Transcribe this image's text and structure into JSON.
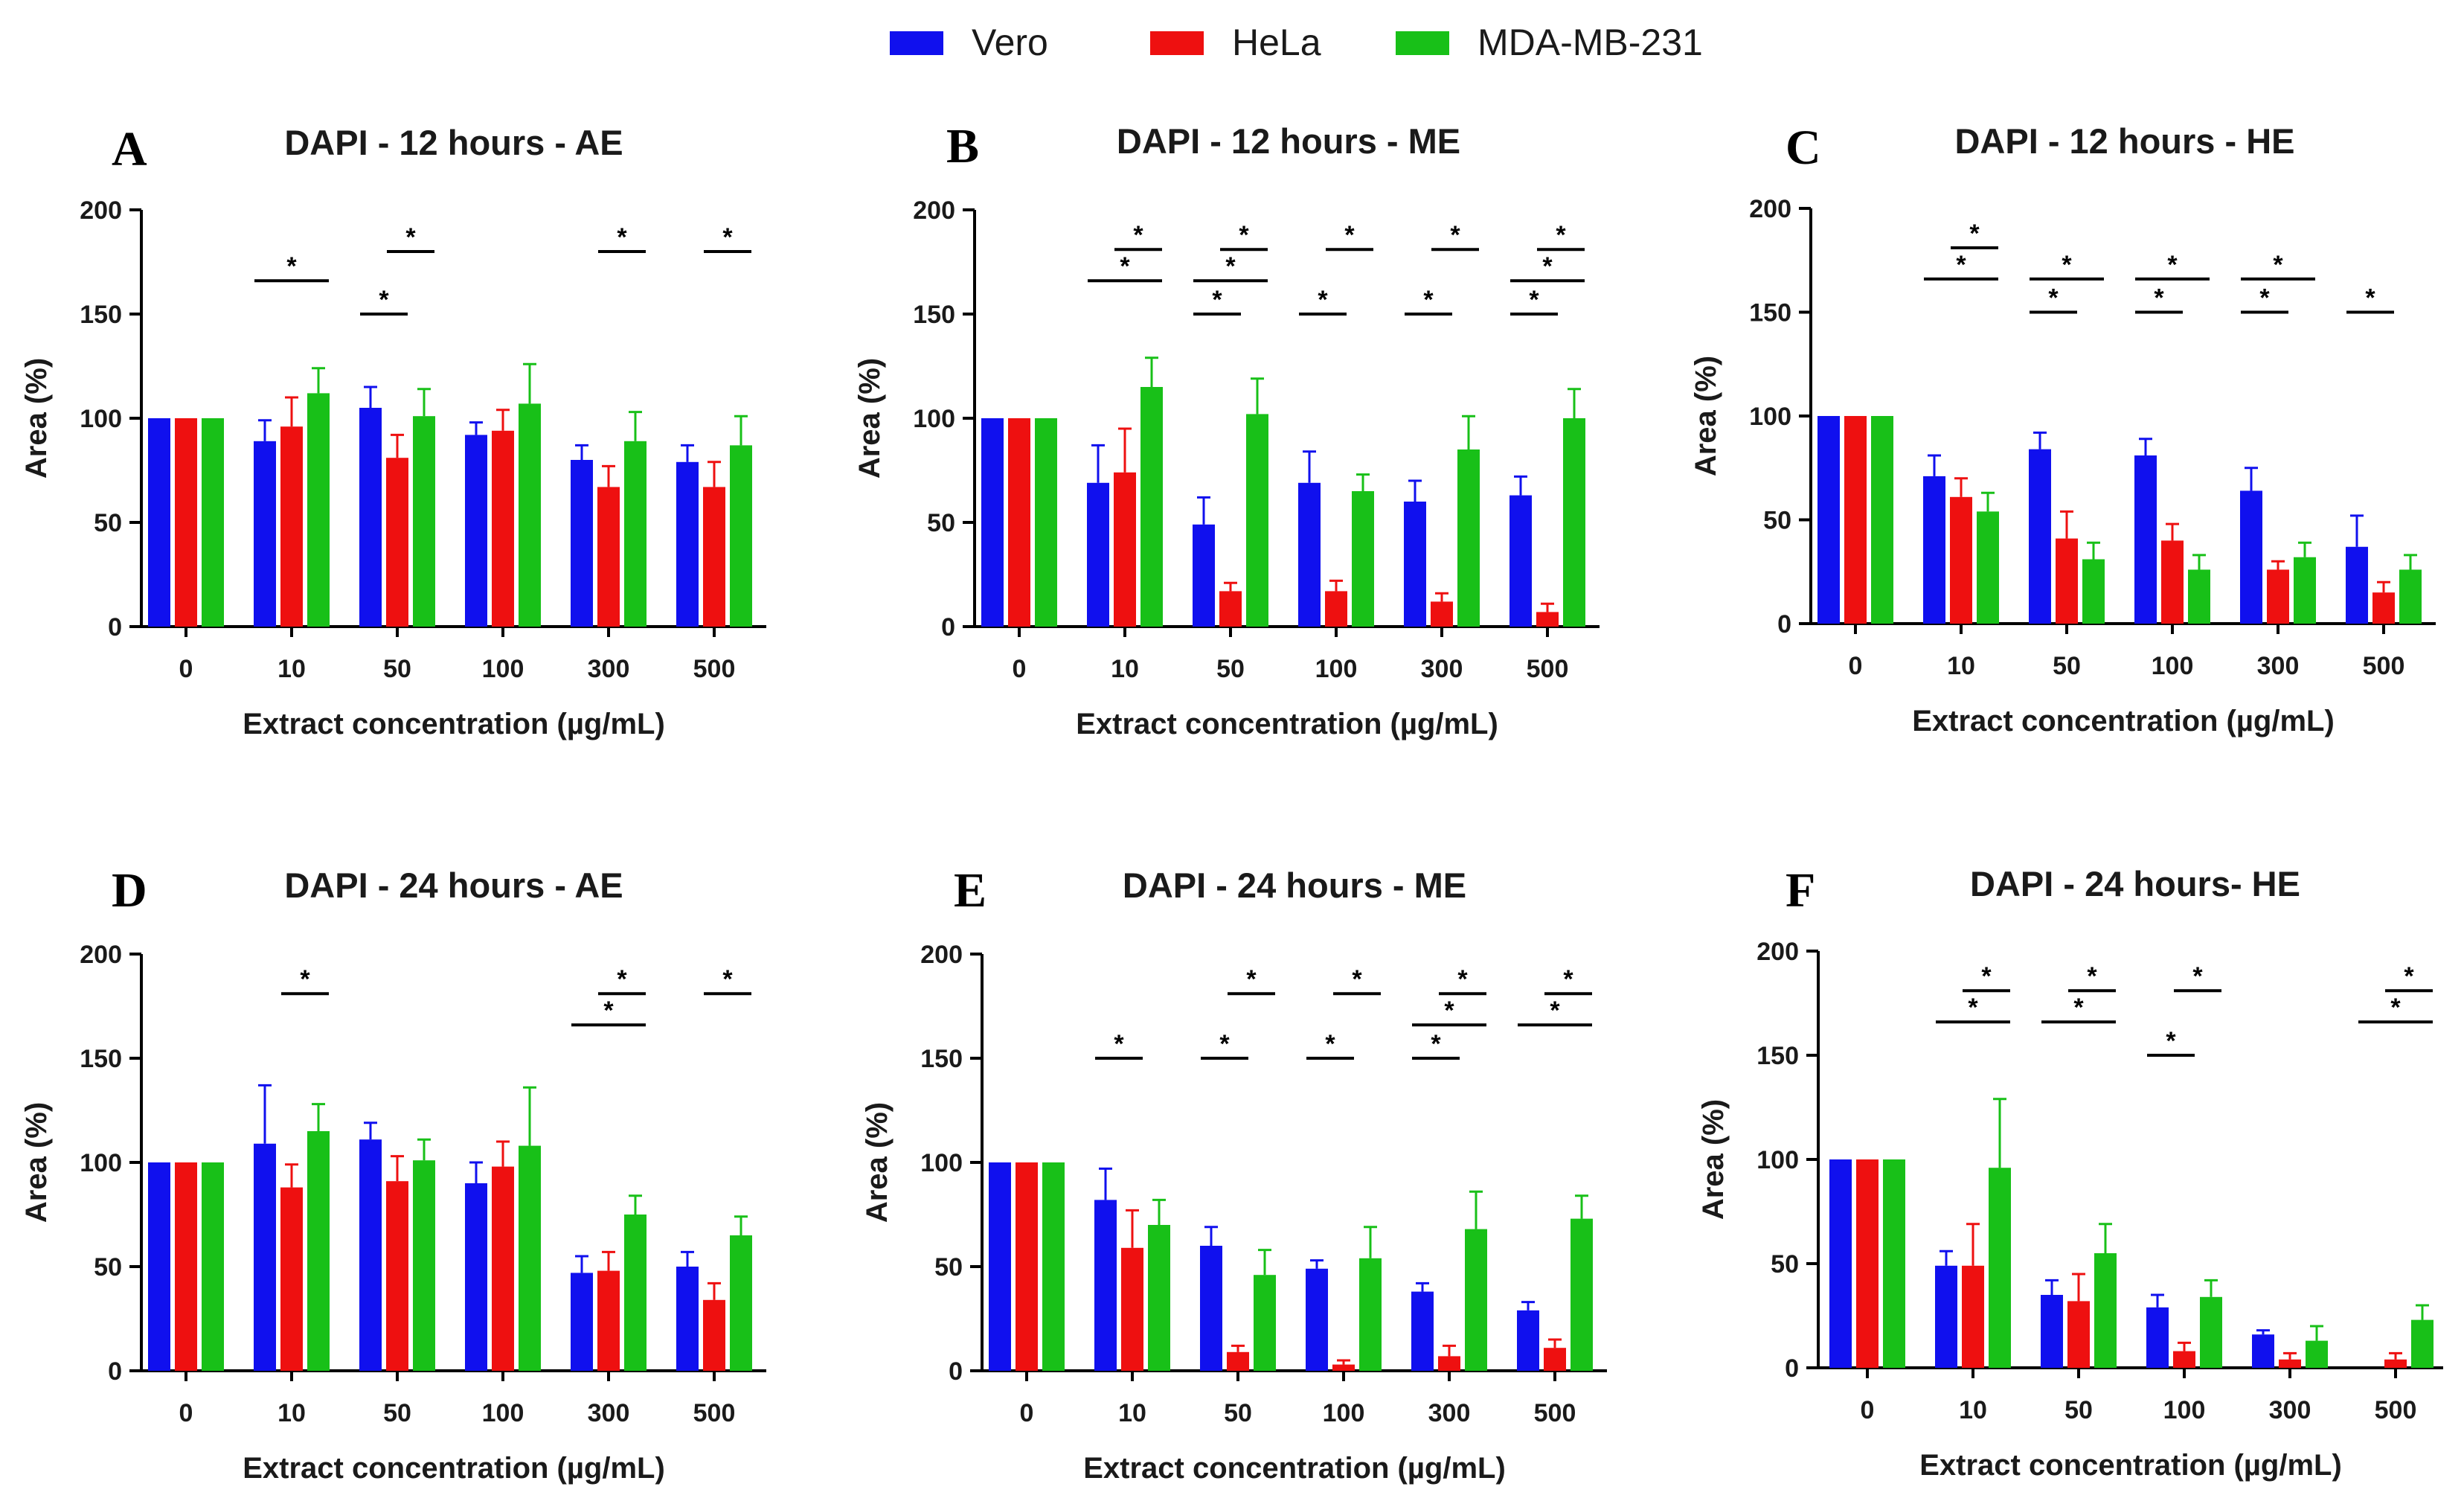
{
  "figure_legend": [
    {
      "name": "Vero",
      "color": "#1010ee"
    },
    {
      "name": "HeLa",
      "color": "#ee1010"
    },
    {
      "name": "MDA-MB-231",
      "color": "#18c018"
    }
  ],
  "chart_data": [
    {
      "type": "bar",
      "letter": "A",
      "title": "DAPI - 12 hours - AE",
      "xlabel": "Extract concentration (µg/mL)",
      "ylabel": "Area (%)",
      "ylim": [
        0,
        200
      ],
      "yticks": [
        0,
        50,
        100,
        150,
        200
      ],
      "categories": [
        "0",
        "10",
        "50",
        "100",
        "300",
        "500"
      ],
      "series": [
        {
          "name": "Vero",
          "values": [
            100,
            89,
            105,
            92,
            80,
            79
          ],
          "errors": [
            0,
            10,
            10,
            6,
            7,
            8
          ]
        },
        {
          "name": "HeLa",
          "values": [
            100,
            96,
            81,
            94,
            67,
            67
          ],
          "errors": [
            0,
            14,
            11,
            10,
            10,
            12
          ]
        },
        {
          "name": "MDA-MB-231",
          "values": [
            100,
            112,
            101,
            107,
            89,
            87
          ],
          "errors": [
            0,
            12,
            13,
            19,
            14,
            14
          ]
        }
      ],
      "significance": [
        {
          "group": 1,
          "from": 0,
          "to": 2,
          "y": 166,
          "label": "*"
        },
        {
          "group": 2,
          "from": 0,
          "to": 1,
          "y": 150,
          "label": "*"
        },
        {
          "group": 2,
          "from": 1,
          "to": 2,
          "y": 180,
          "label": "*"
        },
        {
          "group": 4,
          "from": 1,
          "to": 2,
          "y": 180,
          "label": "*"
        },
        {
          "group": 5,
          "from": 1,
          "to": 2,
          "y": 180,
          "label": "*"
        }
      ]
    },
    {
      "type": "bar",
      "letter": "B",
      "title": "DAPI - 12 hours - ME",
      "xlabel": "Extract concentration (µg/mL)",
      "ylabel": "Area (%)",
      "ylim": [
        0,
        200
      ],
      "yticks": [
        0,
        50,
        100,
        150,
        200
      ],
      "categories": [
        "0",
        "10",
        "50",
        "100",
        "300",
        "500"
      ],
      "series": [
        {
          "name": "Vero",
          "values": [
            100,
            69,
            49,
            69,
            60,
            63
          ],
          "errors": [
            0,
            18,
            13,
            15,
            10,
            9
          ]
        },
        {
          "name": "HeLa",
          "values": [
            100,
            74,
            17,
            17,
            12,
            7
          ],
          "errors": [
            0,
            21,
            4,
            5,
            4,
            4
          ]
        },
        {
          "name": "MDA-MB-231",
          "values": [
            100,
            115,
            102,
            65,
            85,
            100
          ],
          "errors": [
            0,
            14,
            17,
            8,
            16,
            14
          ]
        }
      ],
      "significance": [
        {
          "group": 1,
          "from": 0,
          "to": 2,
          "y": 166,
          "label": "*"
        },
        {
          "group": 1,
          "from": 1,
          "to": 2,
          "y": 181,
          "label": "*"
        },
        {
          "group": 2,
          "from": 0,
          "to": 1,
          "y": 150,
          "label": "*"
        },
        {
          "group": 2,
          "from": 0,
          "to": 2,
          "y": 166,
          "label": "*"
        },
        {
          "group": 2,
          "from": 1,
          "to": 2,
          "y": 181,
          "label": "*"
        },
        {
          "group": 3,
          "from": 0,
          "to": 1,
          "y": 150,
          "label": "*"
        },
        {
          "group": 3,
          "from": 1,
          "to": 2,
          "y": 181,
          "label": "*"
        },
        {
          "group": 4,
          "from": 0,
          "to": 1,
          "y": 150,
          "label": "*"
        },
        {
          "group": 4,
          "from": 1,
          "to": 2,
          "y": 181,
          "label": "*"
        },
        {
          "group": 5,
          "from": 0,
          "to": 1,
          "y": 150,
          "label": "*"
        },
        {
          "group": 5,
          "from": 0,
          "to": 2,
          "y": 166,
          "label": "*"
        },
        {
          "group": 5,
          "from": 1,
          "to": 2,
          "y": 181,
          "label": "*"
        }
      ]
    },
    {
      "type": "bar",
      "letter": "C",
      "title": "DAPI - 12 hours - HE",
      "xlabel": "Extract concentration (µg/mL)",
      "ylabel": "Area (%)",
      "ylim": [
        0,
        200
      ],
      "yticks": [
        0,
        50,
        100,
        150,
        200
      ],
      "categories": [
        "0",
        "10",
        "50",
        "100",
        "300",
        "500"
      ],
      "series": [
        {
          "name": "Vero",
          "values": [
            100,
            71,
            84,
            81,
            64,
            37
          ],
          "errors": [
            0,
            10,
            8,
            8,
            11,
            15
          ]
        },
        {
          "name": "HeLa",
          "values": [
            100,
            61,
            41,
            40,
            26,
            15
          ],
          "errors": [
            0,
            9,
            13,
            8,
            4,
            5
          ]
        },
        {
          "name": "MDA-MB-231",
          "values": [
            100,
            54,
            31,
            26,
            32,
            26
          ],
          "errors": [
            0,
            9,
            8,
            7,
            7,
            7
          ]
        }
      ],
      "significance": [
        {
          "group": 1,
          "from": 0,
          "to": 2,
          "y": 166,
          "label": "*"
        },
        {
          "group": 1,
          "from": 1,
          "to": 2,
          "y": 181,
          "label": "*"
        },
        {
          "group": 2,
          "from": 0,
          "to": 1,
          "y": 150,
          "label": "*"
        },
        {
          "group": 2,
          "from": 0,
          "to": 2,
          "y": 166,
          "label": "*"
        },
        {
          "group": 3,
          "from": 0,
          "to": 1,
          "y": 150,
          "label": "*"
        },
        {
          "group": 3,
          "from": 0,
          "to": 2,
          "y": 166,
          "label": "*"
        },
        {
          "group": 4,
          "from": 0,
          "to": 1,
          "y": 150,
          "label": "*"
        },
        {
          "group": 4,
          "from": 0,
          "to": 2,
          "y": 166,
          "label": "*"
        },
        {
          "group": 5,
          "from": 0,
          "to": 1,
          "y": 150,
          "label": "*"
        }
      ]
    },
    {
      "type": "bar",
      "letter": "D",
      "title": "DAPI - 24 hours - AE",
      "xlabel": "Extract concentration (µg/mL)",
      "ylabel": "Area (%)",
      "ylim": [
        0,
        200
      ],
      "yticks": [
        0,
        50,
        100,
        150,
        200
      ],
      "categories": [
        "0",
        "10",
        "50",
        "100",
        "300",
        "500"
      ],
      "series": [
        {
          "name": "Vero",
          "values": [
            100,
            109,
            111,
            90,
            47,
            50
          ],
          "errors": [
            0,
            28,
            8,
            10,
            8,
            7
          ]
        },
        {
          "name": "HeLa",
          "values": [
            100,
            88,
            91,
            98,
            48,
            34
          ],
          "errors": [
            0,
            11,
            12,
            12,
            9,
            8
          ]
        },
        {
          "name": "MDA-MB-231",
          "values": [
            100,
            115,
            101,
            108,
            75,
            65
          ],
          "errors": [
            0,
            13,
            10,
            28,
            9,
            9
          ]
        }
      ],
      "significance": [
        {
          "group": 1,
          "from": 1,
          "to": 2,
          "y": 181,
          "label": "*"
        },
        {
          "group": 4,
          "from": 0,
          "to": 2,
          "y": 166,
          "label": "*"
        },
        {
          "group": 4,
          "from": 1,
          "to": 2,
          "y": 181,
          "label": "*"
        },
        {
          "group": 5,
          "from": 1,
          "to": 2,
          "y": 181,
          "label": "*"
        }
      ]
    },
    {
      "type": "bar",
      "letter": "E",
      "title": "DAPI - 24 hours - ME",
      "xlabel": "Extract concentration (µg/mL)",
      "ylabel": "Area (%)",
      "ylim": [
        0,
        200
      ],
      "yticks": [
        0,
        50,
        100,
        150,
        200
      ],
      "categories": [
        "0",
        "10",
        "50",
        "100",
        "300",
        "500"
      ],
      "series": [
        {
          "name": "Vero",
          "values": [
            100,
            82,
            60,
            49,
            38,
            29
          ],
          "errors": [
            0,
            15,
            9,
            4,
            4,
            4
          ]
        },
        {
          "name": "HeLa",
          "values": [
            100,
            59,
            9,
            3,
            7,
            11
          ],
          "errors": [
            0,
            18,
            3,
            2,
            5,
            4
          ]
        },
        {
          "name": "MDA-MB-231",
          "values": [
            100,
            70,
            46,
            54,
            68,
            73
          ],
          "errors": [
            0,
            12,
            12,
            15,
            18,
            11
          ]
        }
      ],
      "significance": [
        {
          "group": 1,
          "from": 0,
          "to": 1,
          "y": 150,
          "label": "*"
        },
        {
          "group": 2,
          "from": 0,
          "to": 1,
          "y": 150,
          "label": "*"
        },
        {
          "group": 2,
          "from": 1,
          "to": 2,
          "y": 181,
          "label": "*"
        },
        {
          "group": 3,
          "from": 0,
          "to": 1,
          "y": 150,
          "label": "*"
        },
        {
          "group": 3,
          "from": 1,
          "to": 2,
          "y": 181,
          "label": "*"
        },
        {
          "group": 4,
          "from": 0,
          "to": 1,
          "y": 150,
          "label": "*"
        },
        {
          "group": 4,
          "from": 0,
          "to": 2,
          "y": 166,
          "label": "*"
        },
        {
          "group": 4,
          "from": 1,
          "to": 2,
          "y": 181,
          "label": "*"
        },
        {
          "group": 5,
          "from": 0,
          "to": 2,
          "y": 166,
          "label": "*"
        },
        {
          "group": 5,
          "from": 1,
          "to": 2,
          "y": 181,
          "label": "*"
        }
      ]
    },
    {
      "type": "bar",
      "letter": "F",
      "title": "DAPI - 24 hours- HE",
      "xlabel": "Extract concentration (µg/mL)",
      "ylabel": "Area (%)",
      "ylim": [
        0,
        200
      ],
      "yticks": [
        0,
        50,
        100,
        150,
        200
      ],
      "categories": [
        "0",
        "10",
        "50",
        "100",
        "300",
        "500"
      ],
      "series": [
        {
          "name": "Vero",
          "values": [
            100,
            49,
            35,
            29,
            16,
            0
          ],
          "errors": [
            0,
            7,
            7,
            6,
            2,
            0
          ]
        },
        {
          "name": "HeLa",
          "values": [
            100,
            49,
            32,
            8,
            4,
            4
          ],
          "errors": [
            0,
            20,
            13,
            4,
            3,
            3
          ]
        },
        {
          "name": "MDA-MB-231",
          "values": [
            100,
            96,
            55,
            34,
            13,
            23
          ],
          "errors": [
            0,
            33,
            14,
            8,
            7,
            7
          ]
        }
      ],
      "significance": [
        {
          "group": 1,
          "from": 0,
          "to": 2,
          "y": 166,
          "label": "*"
        },
        {
          "group": 1,
          "from": 1,
          "to": 2,
          "y": 181,
          "label": "*"
        },
        {
          "group": 2,
          "from": 0,
          "to": 2,
          "y": 166,
          "label": "*"
        },
        {
          "group": 2,
          "from": 1,
          "to": 2,
          "y": 181,
          "label": "*"
        },
        {
          "group": 3,
          "from": 0,
          "to": 1,
          "y": 150,
          "label": "*"
        },
        {
          "group": 3,
          "from": 1,
          "to": 2,
          "y": 181,
          "label": "*"
        },
        {
          "group": 5,
          "from": 0,
          "to": 2,
          "y": 166,
          "label": "*"
        },
        {
          "group": 5,
          "from": 1,
          "to": 2,
          "y": 181,
          "label": "*"
        }
      ]
    }
  ]
}
